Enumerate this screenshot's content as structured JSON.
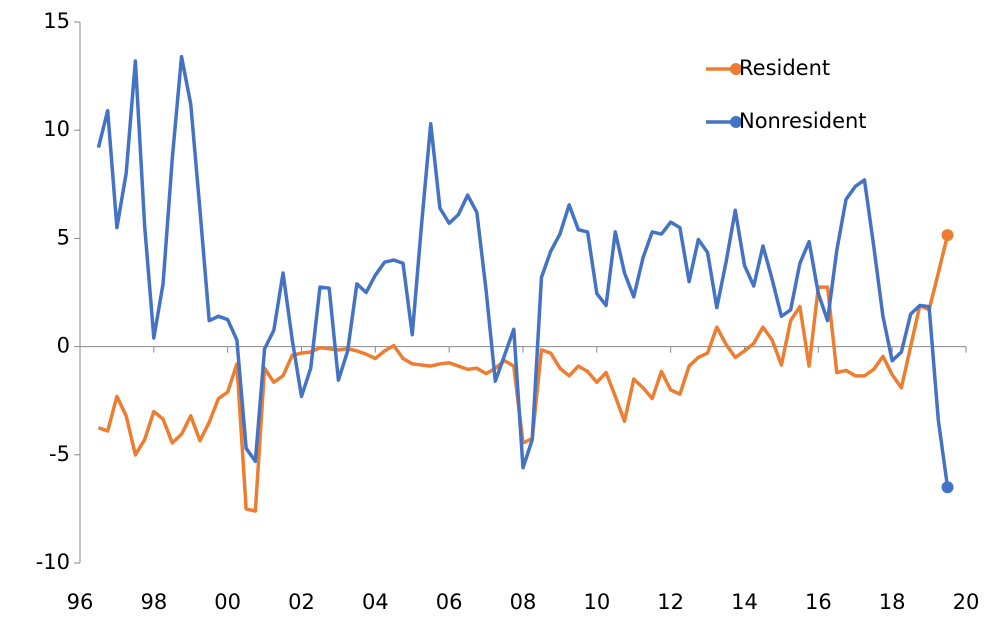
{
  "chart_data": {
    "type": "line",
    "x": [
      1996.5,
      1996.75,
      1997,
      1997.25,
      1997.5,
      1997.75,
      1998,
      1998.25,
      1998.5,
      1998.75,
      1999,
      1999.25,
      1999.5,
      1999.75,
      2000,
      2000.25,
      2000.5,
      2000.75,
      2001,
      2001.25,
      2001.5,
      2001.75,
      2002,
      2002.25,
      2002.5,
      2002.75,
      2003,
      2003.25,
      2003.5,
      2003.75,
      2004,
      2004.25,
      2004.5,
      2004.75,
      2005,
      2005.25,
      2005.5,
      2005.75,
      2006,
      2006.25,
      2006.5,
      2006.75,
      2007,
      2007.25,
      2007.5,
      2007.75,
      2008,
      2008.25,
      2008.5,
      2008.75,
      2009,
      2009.25,
      2009.5,
      2009.75,
      2010,
      2010.25,
      2010.5,
      2010.75,
      2011,
      2011.25,
      2011.5,
      2011.75,
      2012,
      2012.25,
      2012.5,
      2012.75,
      2013,
      2013.25,
      2013.5,
      2013.75,
      2014,
      2014.25,
      2014.5,
      2014.75,
      2015,
      2015.25,
      2015.5,
      2015.75,
      2016,
      2016.25,
      2016.5,
      2016.75,
      2017,
      2017.25,
      2017.5,
      2017.75,
      2018,
      2018.25,
      2018.5,
      2018.75,
      2019,
      2019.25,
      2019.5
    ],
    "series": [
      {
        "name": "Resident",
        "color": "#ed7d31",
        "values": [
          -3.75,
          -3.9,
          -2.3,
          -3.2,
          -5.0,
          -4.3,
          -3.0,
          -3.35,
          -4.45,
          -4.05,
          -3.2,
          -4.35,
          -3.5,
          -2.4,
          -2.1,
          -0.8,
          -7.5,
          -7.6,
          -1.0,
          -1.65,
          -1.35,
          -0.4,
          -0.3,
          -0.25,
          -0.05,
          -0.1,
          -0.15,
          -0.1,
          -0.2,
          -0.35,
          -0.55,
          -0.2,
          0.05,
          -0.55,
          -0.8,
          -0.85,
          -0.9,
          -0.8,
          -0.75,
          -0.9,
          -1.05,
          -1.0,
          -1.25,
          -1.0,
          -0.65,
          -0.9,
          -4.45,
          -4.25,
          -0.15,
          -0.3,
          -1.0,
          -1.35,
          -0.9,
          -1.15,
          -1.65,
          -1.2,
          -2.3,
          -3.45,
          -1.5,
          -1.9,
          -2.4,
          -1.15,
          -2.0,
          -2.2,
          -0.9,
          -0.5,
          -0.3,
          0.9,
          0.1,
          -0.5,
          -0.2,
          0.15,
          0.9,
          0.3,
          -0.85,
          1.2,
          1.85,
          -0.9,
          2.75,
          2.75,
          -1.2,
          -1.1,
          -1.35,
          -1.35,
          -1.05,
          -0.45,
          -1.3,
          -1.9,
          0.0,
          1.9,
          1.7,
          3.4,
          5.15
        ]
      },
      {
        "name": "Nonresident",
        "color": "#4472c4",
        "values": [
          9.2,
          10.9,
          5.5,
          8.0,
          13.2,
          5.6,
          0.4,
          2.9,
          8.7,
          13.4,
          11.2,
          6.3,
          1.2,
          1.4,
          1.25,
          0.3,
          -4.7,
          -5.3,
          -0.1,
          0.75,
          3.4,
          0.3,
          -2.3,
          -1.0,
          2.75,
          2.7,
          -1.55,
          -0.2,
          2.9,
          2.5,
          3.3,
          3.9,
          4.0,
          3.85,
          0.55,
          5.6,
          10.3,
          6.4,
          5.7,
          6.1,
          7.0,
          6.2,
          2.6,
          -1.6,
          -0.4,
          0.8,
          -5.6,
          -4.3,
          3.2,
          4.4,
          5.2,
          6.55,
          5.4,
          5.3,
          2.45,
          1.9,
          5.3,
          3.4,
          2.3,
          4.1,
          5.3,
          5.2,
          5.75,
          5.5,
          3.0,
          4.95,
          4.35,
          1.8,
          3.9,
          6.3,
          3.75,
          2.8,
          4.65,
          3.1,
          1.4,
          1.7,
          3.85,
          4.85,
          2.45,
          1.2,
          4.45,
          6.8,
          7.4,
          7.7,
          4.65,
          1.4,
          -0.65,
          -0.25,
          1.5,
          1.9,
          1.85,
          -3.4,
          -6.5
        ]
      }
    ],
    "xlim": [
      1996,
      2020
    ],
    "xticks": [
      {
        "value": 1996,
        "label": "96"
      },
      {
        "value": 1998,
        "label": "98"
      },
      {
        "value": 2000,
        "label": "00"
      },
      {
        "value": 2002,
        "label": "02"
      },
      {
        "value": 2004,
        "label": "04"
      },
      {
        "value": 2006,
        "label": "06"
      },
      {
        "value": 2008,
        "label": "08"
      },
      {
        "value": 2010,
        "label": "10"
      },
      {
        "value": 2012,
        "label": "12"
      },
      {
        "value": 2014,
        "label": "14"
      },
      {
        "value": 2016,
        "label": "16"
      },
      {
        "value": 2018,
        "label": "18"
      },
      {
        "value": 2020,
        "label": "20"
      }
    ],
    "ylim": [
      -10,
      15
    ],
    "yticks": [
      -10,
      -5,
      0,
      5,
      10,
      15
    ],
    "grid": false,
    "legend": "top-right"
  }
}
